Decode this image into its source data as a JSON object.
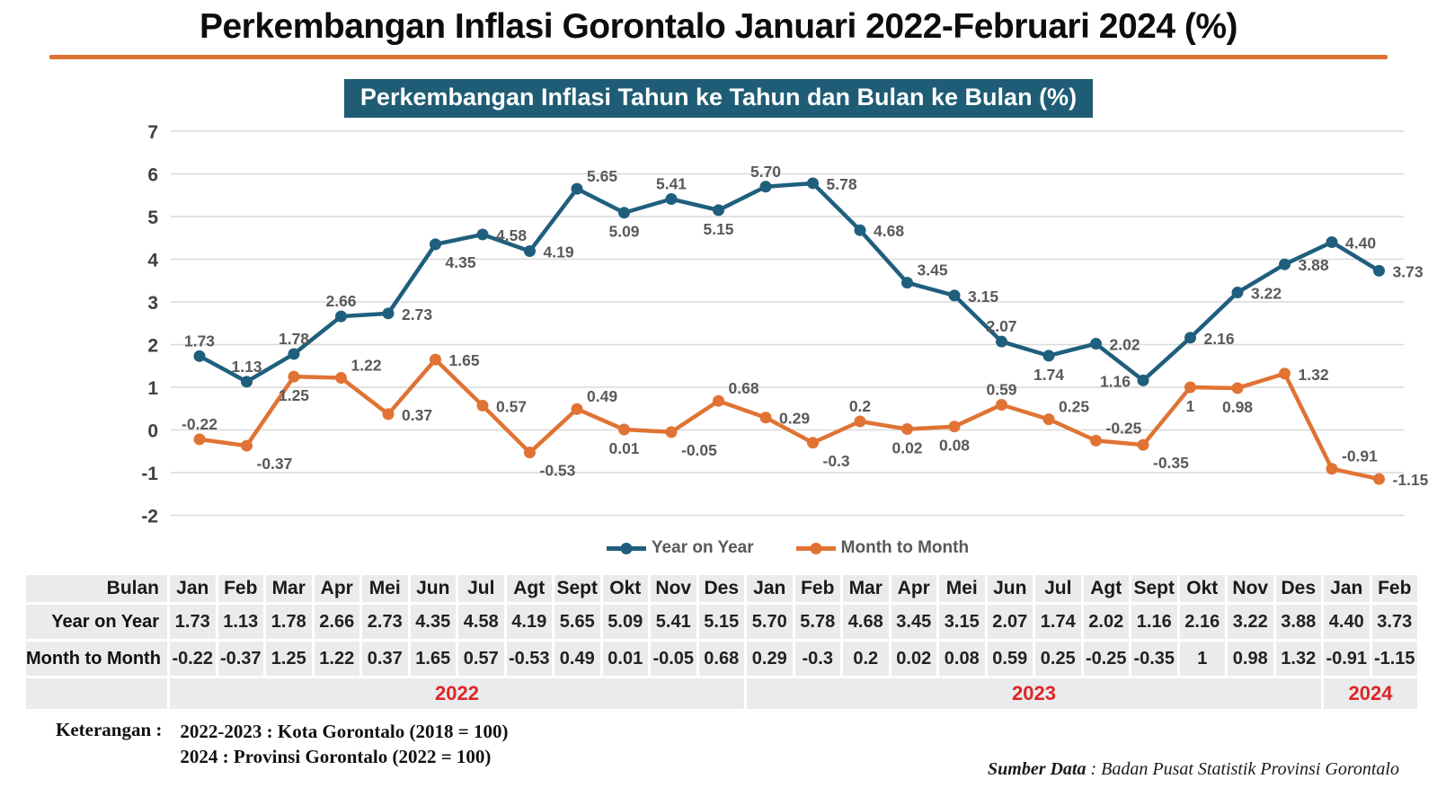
{
  "header": {
    "title": "Perkembangan Inflasi Gorontalo Januari 2022-Februari 2024 (%)",
    "divider_color": "#E07334"
  },
  "chart_data": {
    "type": "line",
    "title": "Perkembangan Inflasi Tahun ke Tahun dan Bulan ke Bulan (%)",
    "banner_bg": "#1F5C75",
    "categories": [
      "Jan",
      "Feb",
      "Mar",
      "Apr",
      "Mei",
      "Jun",
      "Jul",
      "Agt",
      "Sept",
      "Okt",
      "Nov",
      "Des",
      "Jan",
      "Feb",
      "Mar",
      "Apr",
      "Mei",
      "Jun",
      "Jul",
      "Agt",
      "Sept",
      "Okt",
      "Nov",
      "Des",
      "Jan",
      "Feb"
    ],
    "series": [
      {
        "name": "Year on Year",
        "color": "#1F5F7D",
        "values": [
          "1.73",
          "1.13",
          "1.78",
          "2.66",
          "2.73",
          "4.35",
          "4.58",
          "4.19",
          "5.65",
          "5.09",
          "5.41",
          "5.15",
          "5.70",
          "5.78",
          "4.68",
          "3.45",
          "3.15",
          "2.07",
          "1.74",
          "2.02",
          "1.16",
          "2.16",
          "3.22",
          "3.88",
          "4.40",
          "3.73"
        ],
        "label_pos": [
          "a",
          "a",
          "a",
          "a",
          "r",
          "br",
          "r",
          "r",
          "ar",
          "b",
          "a",
          "b",
          "a",
          "r",
          "r",
          "ar",
          "r",
          "a",
          "b",
          "r",
          "l",
          "r",
          "r",
          "r",
          "r",
          "r"
        ]
      },
      {
        "name": "Month to Month",
        "color": "#E07334",
        "values": [
          "-0.22",
          "-0.37",
          "1.25",
          "1.22",
          "0.37",
          "1.65",
          "0.57",
          "-0.53",
          "0.49",
          "0.01",
          "-0.05",
          "0.68",
          "0.29",
          "-0.3",
          "0.2",
          "0.02",
          "0.08",
          "0.59",
          "0.25",
          "-0.25",
          "-0.35",
          "1",
          "0.98",
          "1.32",
          "-0.91",
          "-1.15"
        ],
        "label_pos": [
          "a",
          "br",
          "b",
          "ar",
          "r",
          "r",
          "r",
          "br",
          "ar",
          "b",
          "br",
          "ar",
          "r",
          "br",
          "a",
          "b",
          "b",
          "a",
          "ar",
          "ar",
          "br",
          "b",
          "b",
          "r",
          "ar",
          "r"
        ]
      }
    ],
    "ylim": [
      -2,
      7
    ],
    "yticks": [
      7,
      6,
      5,
      4,
      3,
      2,
      1,
      0,
      -1,
      -2
    ],
    "grid": true,
    "grid_color": "#D9D9D9",
    "x_axis_labels_visible": false,
    "data_labels": true,
    "data_label_color": "#595959",
    "legend_position": "bottom"
  },
  "table": {
    "first_col_header": "Bulan",
    "year_spans": [
      {
        "label": "2022",
        "span": 12
      },
      {
        "label": "2023",
        "span": 12
      },
      {
        "label": "2024",
        "span": 2
      }
    ],
    "year_color": "#E02424"
  },
  "footer": {
    "keterangan_label": "Keterangan :",
    "lines": [
      "2022-2023 : Kota Gorontalo (2018 = 100)",
      "2024 : Provinsi Gorontalo (2022 = 100)"
    ],
    "source_label": "Sumber Data",
    "source_text": ": Badan Pusat Statistik Provinsi Gorontalo"
  }
}
